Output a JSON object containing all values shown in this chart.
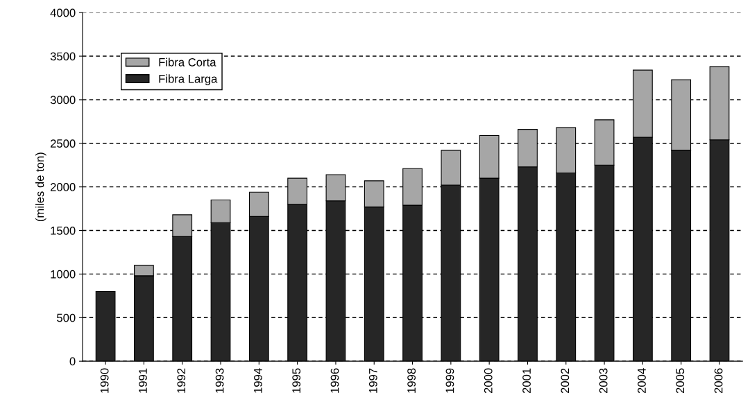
{
  "chart_data": {
    "type": "bar",
    "stacked": true,
    "ylabel": "(miles de ton)",
    "categories": [
      "1990",
      "1991",
      "1992",
      "1993",
      "1994",
      "1995",
      "1996",
      "1997",
      "1998",
      "1999",
      "2000",
      "2001",
      "2002",
      "2003",
      "2004",
      "2005",
      "2006"
    ],
    "series": [
      {
        "name": "Fibra Larga",
        "color": "#262626",
        "values": [
          800,
          980,
          1430,
          1590,
          1660,
          1800,
          1840,
          1770,
          1790,
          2020,
          2100,
          2230,
          2160,
          2250,
          2570,
          2420,
          2540
        ]
      },
      {
        "name": "Fibra Corta",
        "color": "#a6a6a6",
        "values": [
          null,
          120,
          250,
          260,
          280,
          300,
          300,
          300,
          420,
          400,
          490,
          430,
          520,
          520,
          770,
          810,
          840
        ]
      }
    ],
    "ylim": [
      0,
      4000
    ],
    "yticks": [
      0,
      500,
      1000,
      1500,
      2000,
      2500,
      3000,
      3500,
      4000
    ],
    "grid": "y",
    "legend": "top left"
  }
}
